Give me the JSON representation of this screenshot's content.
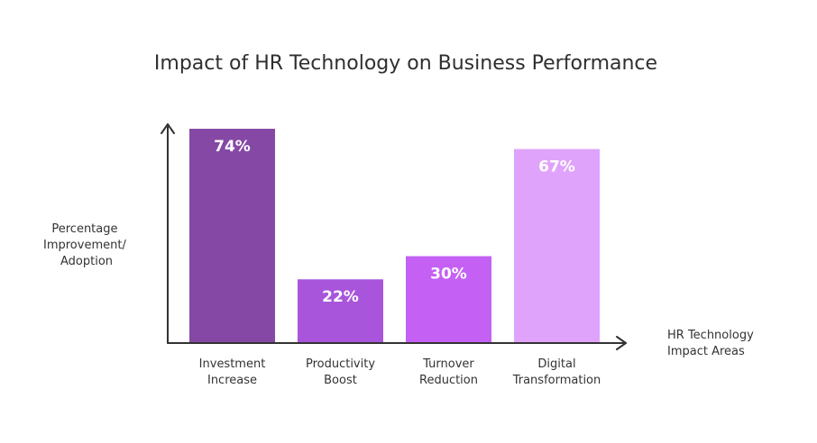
{
  "chart_data": {
    "type": "bar",
    "title": "Impact of HR Technology on Business Performance",
    "ylabel": [
      "Percentage",
      "Improvement/",
      "Adoption"
    ],
    "xlabel": [
      "HR Technology",
      "Impact Areas"
    ],
    "categories": [
      [
        "Investment",
        "Increase"
      ],
      [
        "Productivity",
        "Boost"
      ],
      [
        "Turnover",
        "Reduction"
      ],
      [
        "Digital",
        "Transformation"
      ]
    ],
    "values": [
      74,
      22,
      30,
      67
    ],
    "value_labels": [
      "74%",
      "22%",
      "30%",
      "67%"
    ],
    "colors": [
      "#8549a5",
      "#a855dc",
      "#c461f4",
      "#e0a3fb"
    ],
    "ylim": [
      0,
      80
    ],
    "grid": false,
    "legend": "none"
  }
}
